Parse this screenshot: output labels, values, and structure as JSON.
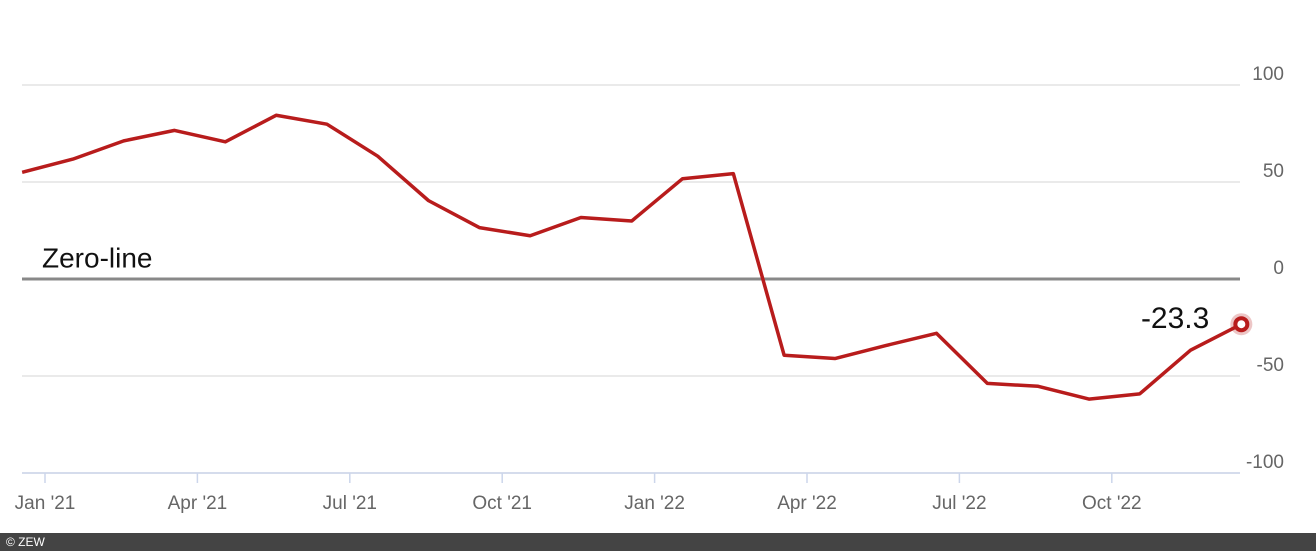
{
  "chart_data": {
    "type": "line",
    "x": [
      "2020-12",
      "2021-01",
      "2021-02",
      "2021-03",
      "2021-04",
      "2021-05",
      "2021-06",
      "2021-07",
      "2021-08",
      "2021-09",
      "2021-10",
      "2021-11",
      "2021-12",
      "2022-01",
      "2022-02",
      "2022-03",
      "2022-04",
      "2022-05",
      "2022-06",
      "2022-07",
      "2022-08",
      "2022-09",
      "2022-10",
      "2022-11",
      "2022-12"
    ],
    "series": [
      {
        "color": "#b81c1c",
        "values": [
          55.0,
          61.8,
          71.2,
          76.6,
          70.7,
          84.4,
          79.8,
          63.3,
          40.4,
          26.5,
          22.3,
          31.7,
          29.9,
          51.7,
          54.3,
          -39.3,
          -41.0,
          -34.3,
          -28.0,
          -53.8,
          -55.3,
          -61.9,
          -59.2,
          -36.7,
          -23.3
        ]
      }
    ],
    "ylim": [
      -100,
      100
    ],
    "yticks": [
      -100,
      -50,
      0,
      50,
      100
    ],
    "grid": true,
    "xticks": [
      {
        "value": "2021-01",
        "label": "Jan '21"
      },
      {
        "value": "2021-04",
        "label": "Apr '21"
      },
      {
        "value": "2021-07",
        "label": "Jul '21"
      },
      {
        "value": "2021-10",
        "label": "Oct '21"
      },
      {
        "value": "2022-01",
        "label": "Jan '22"
      },
      {
        "value": "2022-04",
        "label": "Apr '22"
      },
      {
        "value": "2022-07",
        "label": "Jul '22"
      },
      {
        "value": "2022-10",
        "label": "Oct '22"
      }
    ],
    "annotations": [
      "Zero-line"
    ],
    "credit": "© ZEW"
  }
}
